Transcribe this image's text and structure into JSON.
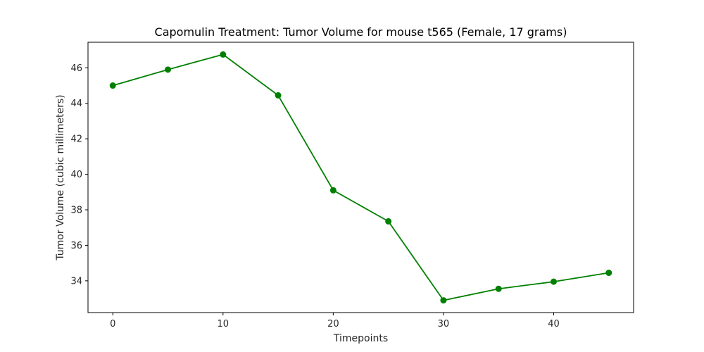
{
  "chart_data": {
    "type": "line",
    "title": "Capomulin Treatment: Tumor Volume for mouse t565 (Female, 17 grams)",
    "xlabel": "Timepoints",
    "ylabel": "Tumor Volume (cubic millimeters)",
    "x": [
      0,
      5,
      10,
      15,
      20,
      25,
      30,
      35,
      40,
      45
    ],
    "series": [
      {
        "values": [
          45.0,
          45.9,
          46.75,
          44.45,
          39.1,
          37.35,
          32.9,
          33.55,
          33.95,
          34.45
        ],
        "color": "#008000",
        "marker": "circle"
      }
    ],
    "xlim": [
      -2.25,
      47.25
    ],
    "ylim": [
      32.21,
      47.44
    ],
    "xticks": [
      0,
      10,
      20,
      30,
      40
    ],
    "yticks": [
      34,
      36,
      38,
      40,
      42,
      44,
      46
    ],
    "grid": false,
    "legend": "none"
  }
}
